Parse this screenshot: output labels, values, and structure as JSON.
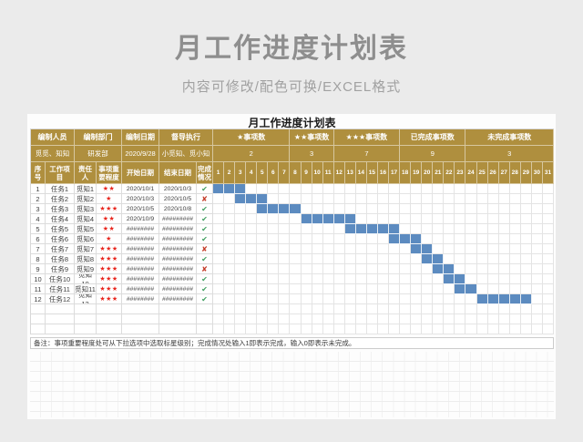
{
  "page": {
    "title": "月工作进度计划表",
    "subtitle": "内容可修改/配色可换/EXCEL格式"
  },
  "sheet": {
    "title": "月工作进度计划表",
    "info": {
      "labels": [
        "编制人员",
        "编制部门",
        "编制日期",
        "督导执行",
        "★事项数",
        "★★事项数",
        "★★★事项数",
        "已完成事项数",
        "未完成事项数"
      ],
      "values": [
        "觅觅、知知",
        "研发部",
        "2020/9/28",
        "小觅知、觅小知",
        "2",
        "3",
        "7",
        "9",
        "3"
      ]
    },
    "columns": [
      "序号",
      "工作项目",
      "责任人",
      "事项重要程度",
      "开始日期",
      "结束日期",
      "完成情况"
    ],
    "days": [
      1,
      2,
      3,
      4,
      5,
      6,
      7,
      8,
      9,
      10,
      11,
      12,
      13,
      14,
      15,
      16,
      17,
      18,
      19,
      20,
      21,
      22,
      23,
      24,
      25,
      26,
      27,
      28,
      29,
      30,
      31
    ],
    "status_icons": {
      "done": "✔",
      "undone": "✘"
    },
    "tasks": [
      {
        "no": "1",
        "name": "任务1",
        "owner": "觅知1",
        "stars": "★★",
        "start": "2020/10/1",
        "end": "2020/10/3",
        "done": true,
        "bar": [
          1,
          3
        ]
      },
      {
        "no": "2",
        "name": "任务2",
        "owner": "觅知2",
        "stars": "★",
        "start": "2020/10/3",
        "end": "2020/10/5",
        "done": false,
        "bar": [
          3,
          5
        ]
      },
      {
        "no": "3",
        "name": "任务3",
        "owner": "觅知3",
        "stars": "★★★",
        "start": "2020/10/5",
        "end": "2020/10/8",
        "done": true,
        "bar": [
          5,
          8
        ]
      },
      {
        "no": "4",
        "name": "任务4",
        "owner": "觅知4",
        "stars": "★★",
        "start": "2020/10/9",
        "end": "#########",
        "done": true,
        "bar": [
          9,
          13
        ]
      },
      {
        "no": "5",
        "name": "任务5",
        "owner": "觅知5",
        "stars": "★★",
        "start": "########",
        "end": "#########",
        "done": true,
        "bar": [
          13,
          17
        ]
      },
      {
        "no": "6",
        "name": "任务6",
        "owner": "觅知6",
        "stars": "★",
        "start": "########",
        "end": "#########",
        "done": true,
        "bar": [
          17,
          19
        ]
      },
      {
        "no": "7",
        "name": "任务7",
        "owner": "觅知7",
        "stars": "★★★",
        "start": "########",
        "end": "#########",
        "done": false,
        "bar": [
          19,
          20
        ]
      },
      {
        "no": "8",
        "name": "任务8",
        "owner": "觅知8",
        "stars": "★★★",
        "start": "########",
        "end": "#########",
        "done": true,
        "bar": [
          20,
          21
        ]
      },
      {
        "no": "9",
        "name": "任务9",
        "owner": "觅知9",
        "stars": "★★★",
        "start": "########",
        "end": "#########",
        "done": false,
        "bar": [
          21,
          22
        ]
      },
      {
        "no": "10",
        "name": "任务10",
        "owner": "觅知10",
        "stars": "★★★",
        "start": "########",
        "end": "#########",
        "done": true,
        "bar": [
          22,
          23
        ]
      },
      {
        "no": "11",
        "name": "任务11",
        "owner": "觅知11",
        "stars": "★★★",
        "start": "########",
        "end": "#########",
        "done": true,
        "bar": [
          23,
          24
        ]
      },
      {
        "no": "12",
        "name": "任务12",
        "owner": "觅知12",
        "stars": "★★★",
        "start": "########",
        "end": "#########",
        "done": true,
        "bar": [
          25,
          29
        ]
      }
    ],
    "note": "备注：事项重要程度处可从下拉选项中选取标星级别；完成情况处输入1即表示完成，输入0即表示未完成。"
  },
  "colors": {
    "page_bg": "#ebebeb",
    "panel_bg": "#fdfdfd",
    "title_gray": "#8e8e8e",
    "subtitle_gray": "#a1a1a1",
    "gold": "#af8f3e",
    "bar_blue": "#5c8bc0",
    "star_red": "#e8251d",
    "check_green": "#3f9e5f",
    "cross_red": "#c43b28"
  }
}
